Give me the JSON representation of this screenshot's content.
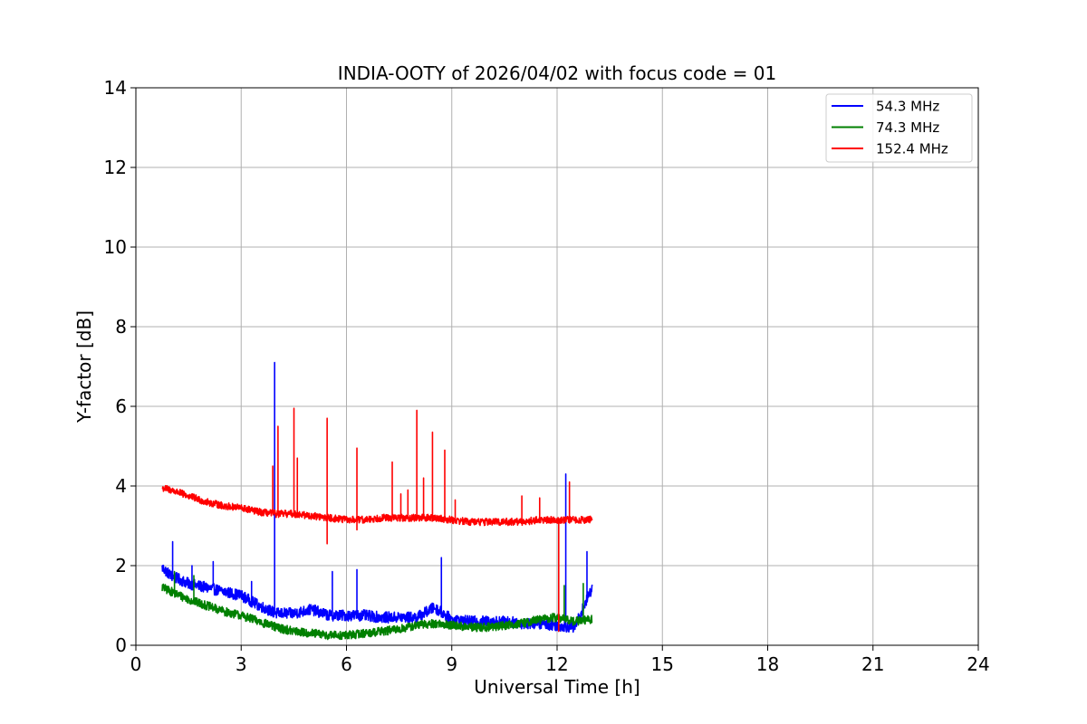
{
  "chart_data": {
    "type": "line",
    "title": "INDIA-OOTY of 2026/04/02 with focus code = 01",
    "xlabel": "Universal Time [h]",
    "ylabel": "Y-factor [dB]",
    "xlim": [
      0,
      24
    ],
    "ylim": [
      0,
      14
    ],
    "xticks": [
      0,
      3,
      6,
      9,
      12,
      15,
      18,
      21,
      24
    ],
    "yticks": [
      0,
      2,
      4,
      6,
      8,
      10,
      12,
      14
    ],
    "grid": true,
    "legend_position": "top-right",
    "series": [
      {
        "name": "54.3 MHz",
        "label": "  54.3 MHz",
        "color": "#0000ff",
        "x": [
          0.75,
          1.0,
          1.5,
          2.0,
          2.5,
          3.0,
          3.5,
          4.0,
          4.5,
          5.0,
          5.5,
          6.0,
          6.5,
          7.0,
          7.5,
          8.0,
          8.5,
          9.0,
          9.5,
          10.0,
          10.5,
          11.0,
          11.5,
          12.0,
          12.5,
          13.0
        ],
        "values": [
          1.95,
          1.75,
          1.55,
          1.45,
          1.35,
          1.25,
          1.0,
          0.8,
          0.8,
          0.9,
          0.75,
          0.75,
          0.75,
          0.7,
          0.7,
          0.7,
          0.95,
          0.65,
          0.6,
          0.6,
          0.6,
          0.55,
          0.55,
          0.5,
          0.45,
          1.45
        ],
        "spikes": [
          [
            1.05,
            2.6
          ],
          [
            1.6,
            2.0
          ],
          [
            2.2,
            2.1
          ],
          [
            3.3,
            1.6
          ],
          [
            3.95,
            7.1
          ],
          [
            5.6,
            1.85
          ],
          [
            6.3,
            1.9
          ],
          [
            8.7,
            2.2
          ],
          [
            12.25,
            4.3
          ],
          [
            12.85,
            2.35
          ]
        ]
      },
      {
        "name": "74.3 MHz",
        "label": "  74.3 MHz",
        "color": "#008000",
        "x": [
          0.75,
          1.0,
          1.5,
          2.0,
          2.5,
          3.0,
          3.5,
          4.0,
          4.5,
          5.0,
          5.5,
          6.0,
          6.5,
          7.0,
          7.5,
          8.0,
          8.5,
          9.0,
          9.5,
          10.0,
          10.5,
          11.0,
          11.5,
          12.0,
          12.5,
          13.0
        ],
        "values": [
          1.45,
          1.35,
          1.15,
          1.0,
          0.85,
          0.75,
          0.6,
          0.45,
          0.35,
          0.3,
          0.25,
          0.25,
          0.3,
          0.35,
          0.4,
          0.5,
          0.55,
          0.5,
          0.45,
          0.45,
          0.5,
          0.55,
          0.65,
          0.7,
          0.6,
          0.65
        ],
        "spikes": [
          [
            1.1,
            1.85
          ],
          [
            1.65,
            1.75
          ],
          [
            12.2,
            1.5
          ],
          [
            12.75,
            1.55
          ]
        ]
      },
      {
        "name": "152.4 MHz",
        "label": " 152.4 MHz",
        "color": "#ff0000",
        "x": [
          0.75,
          1.0,
          1.5,
          2.0,
          2.5,
          3.0,
          3.5,
          4.0,
          4.5,
          5.0,
          5.5,
          6.0,
          6.5,
          7.0,
          7.5,
          8.0,
          8.5,
          9.0,
          9.5,
          10.0,
          10.5,
          11.0,
          11.5,
          12.0,
          12.5,
          13.0
        ],
        "values": [
          3.95,
          3.9,
          3.75,
          3.6,
          3.5,
          3.45,
          3.35,
          3.3,
          3.3,
          3.25,
          3.2,
          3.15,
          3.15,
          3.2,
          3.2,
          3.2,
          3.2,
          3.15,
          3.1,
          3.1,
          3.1,
          3.1,
          3.15,
          3.15,
          3.15,
          3.15
        ],
        "spikes": [
          [
            3.9,
            4.5
          ],
          [
            4.05,
            5.5
          ],
          [
            4.5,
            5.95
          ],
          [
            4.6,
            4.7
          ],
          [
            5.45,
            5.7
          ],
          [
            6.3,
            4.95
          ],
          [
            7.3,
            4.6
          ],
          [
            7.55,
            3.8
          ],
          [
            7.75,
            3.9
          ],
          [
            8.0,
            5.9
          ],
          [
            8.2,
            4.2
          ],
          [
            8.45,
            5.35
          ],
          [
            8.8,
            4.9
          ],
          [
            9.1,
            3.65
          ],
          [
            11.0,
            3.75
          ],
          [
            11.5,
            3.7
          ],
          [
            12.35,
            4.1
          ]
        ],
        "dips": [
          [
            5.45,
            2.55
          ],
          [
            6.3,
            2.9
          ],
          [
            12.05,
            0.35
          ]
        ]
      }
    ]
  }
}
